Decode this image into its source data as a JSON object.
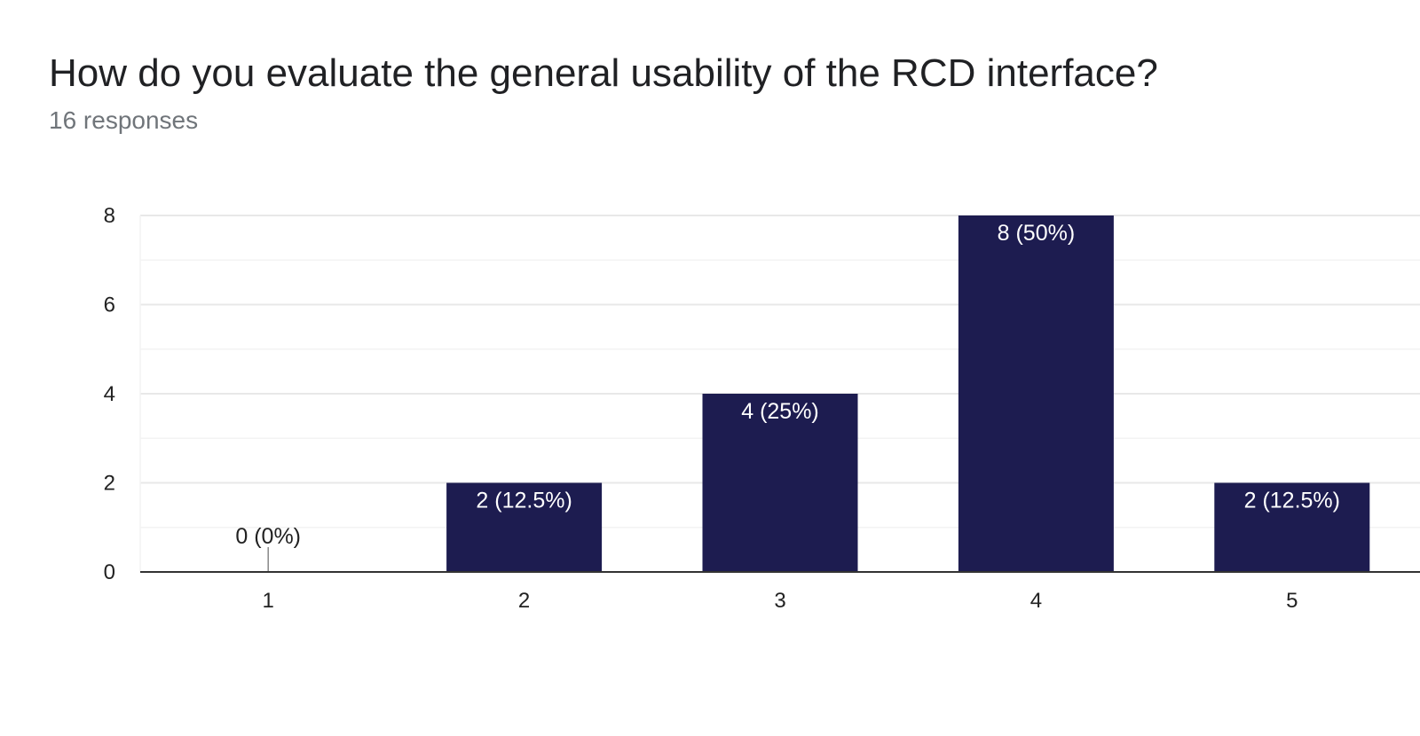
{
  "question": {
    "title": "How do you evaluate the general usability of the RCD interface?",
    "responses": "16 responses"
  },
  "colors": {
    "bar": "#1d1c50",
    "gridline_major": "#e8e8e8",
    "gridline_minor": "#f3f3f3",
    "axis": "#333333",
    "label_inside": "#ffffff",
    "label_outside": "#222222"
  },
  "chart_data": {
    "type": "bar",
    "title": "How do you evaluate the general usability of the RCD interface?",
    "subtitle": "16 responses",
    "categories": [
      "1",
      "2",
      "3",
      "4",
      "5"
    ],
    "values": [
      0,
      2,
      4,
      8,
      2
    ],
    "data_labels": [
      "0 (0%)",
      "2 (12.5%)",
      "4 (25%)",
      "8 (50%)",
      "2 (12.5%)"
    ],
    "xlabel": "",
    "ylabel": "",
    "ylim": [
      0,
      8
    ],
    "yticks": [
      0,
      2,
      4,
      6,
      8
    ],
    "grid": true,
    "legend": "none"
  }
}
